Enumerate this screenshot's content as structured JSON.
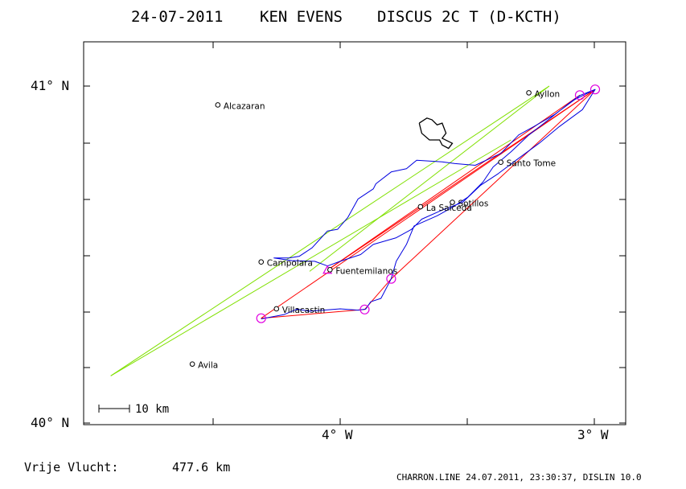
{
  "title": {
    "date": "24-07-2011",
    "pilot": "KEN EVENS",
    "glider": "DISCUS 2C T (D-KCTH)"
  },
  "axes": {
    "lat_labels": [
      "41° N",
      "40° N"
    ],
    "lon_labels": [
      "4° W",
      "3° W"
    ]
  },
  "towns": [
    {
      "name": "Alcazaran",
      "lon": -4.48,
      "lat": 40.944
    },
    {
      "name": "Ayllon",
      "lon": -3.26,
      "lat": 40.98
    },
    {
      "name": "Santo Tome",
      "lon": -3.37,
      "lat": 40.774
    },
    {
      "name": "Sotillos",
      "lon": -3.56,
      "lat": 40.655
    },
    {
      "name": "La Salceda",
      "lon": -3.685,
      "lat": 40.642
    },
    {
      "name": "Campolara",
      "lon": -4.31,
      "lat": 40.478
    },
    {
      "name": "Fuentemilanos",
      "lon": -4.04,
      "lat": 40.455
    },
    {
      "name": "Villacastin",
      "lon": -4.25,
      "lat": 40.339
    },
    {
      "name": "Avila",
      "lon": -4.58,
      "lat": 40.175
    }
  ],
  "scale_bar": {
    "label": "10 km"
  },
  "flight": {
    "triangle": {
      "label": "Fuentemilanos",
      "lon": -4.05,
      "lat": 40.454
    },
    "turnpoints": [
      {
        "lon": -4.31,
        "lat": 40.311
      },
      {
        "lon": -3.904,
        "lat": 40.337
      },
      {
        "lon": -3.8,
        "lat": 40.428
      },
      {
        "lon": -3.06,
        "lat": 40.973
      },
      {
        "lon": -3.0,
        "lat": 40.99
      }
    ],
    "track": [
      [
        -4.31,
        40.309
      ],
      [
        -4.22,
        40.322
      ],
      [
        -4.17,
        40.338
      ],
      [
        -4.12,
        40.332
      ],
      [
        -4.05,
        40.336
      ],
      [
        -4.0,
        40.339
      ],
      [
        -3.93,
        40.335
      ],
      [
        -3.9,
        40.338
      ],
      [
        -3.88,
        40.36
      ],
      [
        -3.84,
        40.37
      ],
      [
        -3.8,
        40.428
      ],
      [
        -3.78,
        40.48
      ],
      [
        -3.74,
        40.53
      ],
      [
        -3.71,
        40.585
      ],
      [
        -3.62,
        40.615
      ],
      [
        -3.56,
        40.64
      ],
      [
        -3.5,
        40.67
      ],
      [
        -3.44,
        40.715
      ],
      [
        -3.4,
        40.76
      ],
      [
        -3.33,
        40.805
      ],
      [
        -3.26,
        40.855
      ],
      [
        -3.2,
        40.89
      ],
      [
        -3.1,
        40.95
      ],
      [
        -3.06,
        40.972
      ],
      [
        -3.0,
        40.99
      ],
      [
        -3.08,
        40.96
      ],
      [
        -3.16,
        40.915
      ],
      [
        -3.24,
        40.88
      ],
      [
        -3.3,
        40.855
      ],
      [
        -3.37,
        40.8
      ],
      [
        -3.47,
        40.765
      ],
      [
        -3.55,
        40.77
      ],
      [
        -3.6,
        40.775
      ],
      [
        -3.7,
        40.78
      ],
      [
        -3.74,
        40.755
      ],
      [
        -3.8,
        40.745
      ],
      [
        -3.86,
        40.71
      ],
      [
        -3.87,
        40.695
      ],
      [
        -3.93,
        40.665
      ],
      [
        -3.97,
        40.61
      ],
      [
        -4.01,
        40.575
      ],
      [
        -4.05,
        40.57
      ],
      [
        -4.08,
        40.545
      ],
      [
        -4.11,
        40.52
      ],
      [
        -4.16,
        40.495
      ],
      [
        -4.2,
        40.49
      ],
      [
        -4.26,
        40.49
      ],
      [
        -4.19,
        40.482
      ],
      [
        -4.1,
        40.48
      ],
      [
        -4.05,
        40.466
      ],
      [
        -4.0,
        40.48
      ],
      [
        -3.92,
        40.5
      ],
      [
        -3.87,
        40.53
      ],
      [
        -3.78,
        40.55
      ],
      [
        -3.72,
        40.575
      ],
      [
        -3.68,
        40.605
      ],
      [
        -3.6,
        40.632
      ],
      [
        -3.52,
        40.655
      ],
      [
        -3.45,
        40.705
      ],
      [
        -3.38,
        40.74
      ],
      [
        -3.31,
        40.78
      ],
      [
        -3.22,
        40.83
      ],
      [
        -3.14,
        40.88
      ],
      [
        -3.05,
        40.93
      ],
      [
        -3.0,
        40.99
      ]
    ],
    "declared_lines": [
      [
        [
          -4.31,
          40.311
        ],
        [
          -3.0,
          40.99
        ]
      ],
      [
        [
          -4.31,
          40.311
        ],
        [
          -3.904,
          40.337
        ],
        [
          -3.8,
          40.428
        ],
        [
          -3.0,
          40.99
        ],
        [
          -4.05,
          40.454
        ]
      ],
      [
        [
          -3.06,
          40.973
        ],
        [
          -4.05,
          40.454
        ]
      ]
    ],
    "fai_sector_tip": {
      "lon": -3.18,
      "lat": 41.0
    },
    "fai_sector": [
      [
        [
          -3.18,
          41.0
        ],
        [
          -4.9,
          40.14
        ]
      ],
      [
        [
          -3.18,
          41.0
        ],
        [
          -4.12,
          40.45
        ]
      ],
      [
        [
          -3.33,
          40.84
        ],
        [
          -4.9,
          40.14
        ]
      ]
    ],
    "lake": [
      [
        -3.69,
        40.89
      ],
      [
        -3.66,
        40.905
      ],
      [
        -3.64,
        40.9
      ],
      [
        -3.62,
        40.885
      ],
      [
        -3.6,
        40.89
      ],
      [
        -3.585,
        40.86
      ],
      [
        -3.6,
        40.845
      ],
      [
        -3.56,
        40.83
      ],
      [
        -3.575,
        40.815
      ],
      [
        -3.6,
        40.825
      ],
      [
        -3.61,
        40.84
      ],
      [
        -3.65,
        40.84
      ],
      [
        -3.68,
        40.86
      ],
      [
        -3.69,
        40.89
      ]
    ]
  },
  "summary": {
    "label": "Vrije Vlucht:",
    "distance": "477.6 km"
  },
  "credit": "CHARRON.LINE 24.07.2011, 23:30:37, DISLIN 10.0",
  "colors": {
    "track": "#0000e0",
    "declared": "#ff0000",
    "fai_sector": "#80e000",
    "turnpoint": "#e000e0"
  }
}
